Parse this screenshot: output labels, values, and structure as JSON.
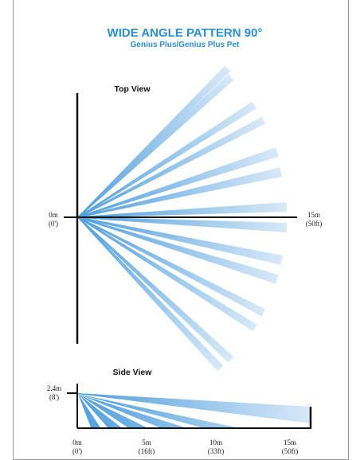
{
  "title": "WIDE ANGLE PATTERN 90°",
  "subtitle": "Genius Plus/Genius Plus Pet",
  "colors": {
    "accent": "#2b8fd6",
    "beam_dark": "#4f9fdc",
    "beam_light": "#d8e9f8",
    "axis": "#111111"
  },
  "top_view": {
    "heading": "Top View",
    "origin_label": "0m",
    "origin_label_ft": "(0')",
    "range_label": "15m",
    "range_label_ft": "(50ft)"
  },
  "side_view": {
    "heading": "Side View",
    "height_label": "2.4m",
    "height_label_ft": "(8')",
    "ticks": [
      {
        "m": "0m",
        "ft": "(0')"
      },
      {
        "m": "5m",
        "ft": "(16ft)"
      },
      {
        "m": "10m",
        "ft": "(33ft)"
      },
      {
        "m": "15m",
        "ft": "(50ft)"
      }
    ]
  }
}
